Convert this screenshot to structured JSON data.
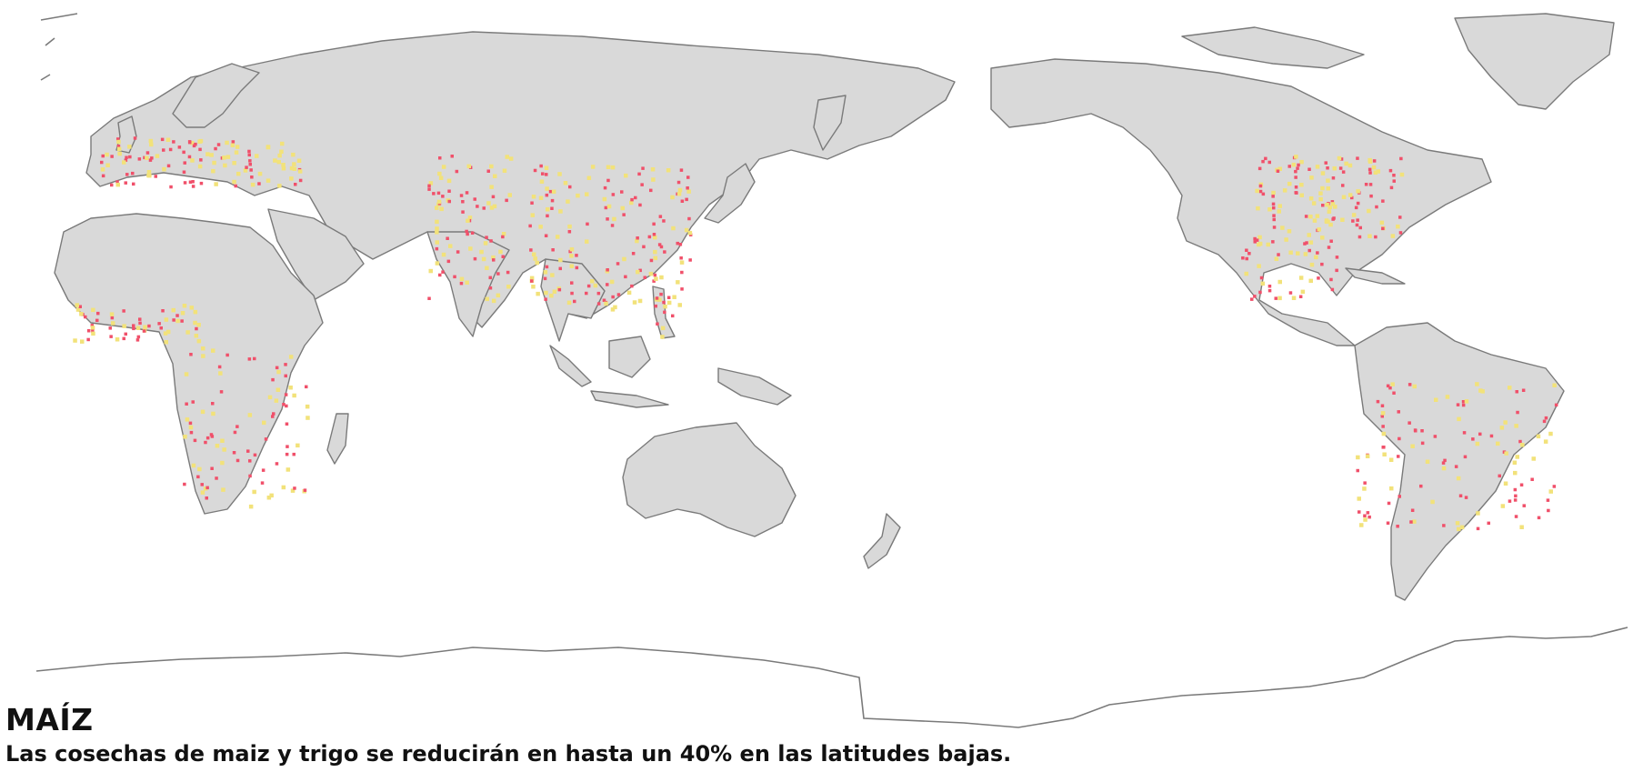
{
  "caption": {
    "title": "MAÍZ",
    "subtitle": "Las cosechas de maiz y trigo se reducirán en hasta un 40% en las  latitudes bajas."
  },
  "colors": {
    "background": "#ffffff",
    "land": "#d9d9d9",
    "coast": "#7a7a7a",
    "high_impact": "#f0506a",
    "moderate_impact": "#f2e27a"
  },
  "map": {
    "projection": "equirectangular, Pacific-centered",
    "layers": [
      "land-mask",
      "maize-growing-area",
      "yield-impact-markers"
    ]
  }
}
